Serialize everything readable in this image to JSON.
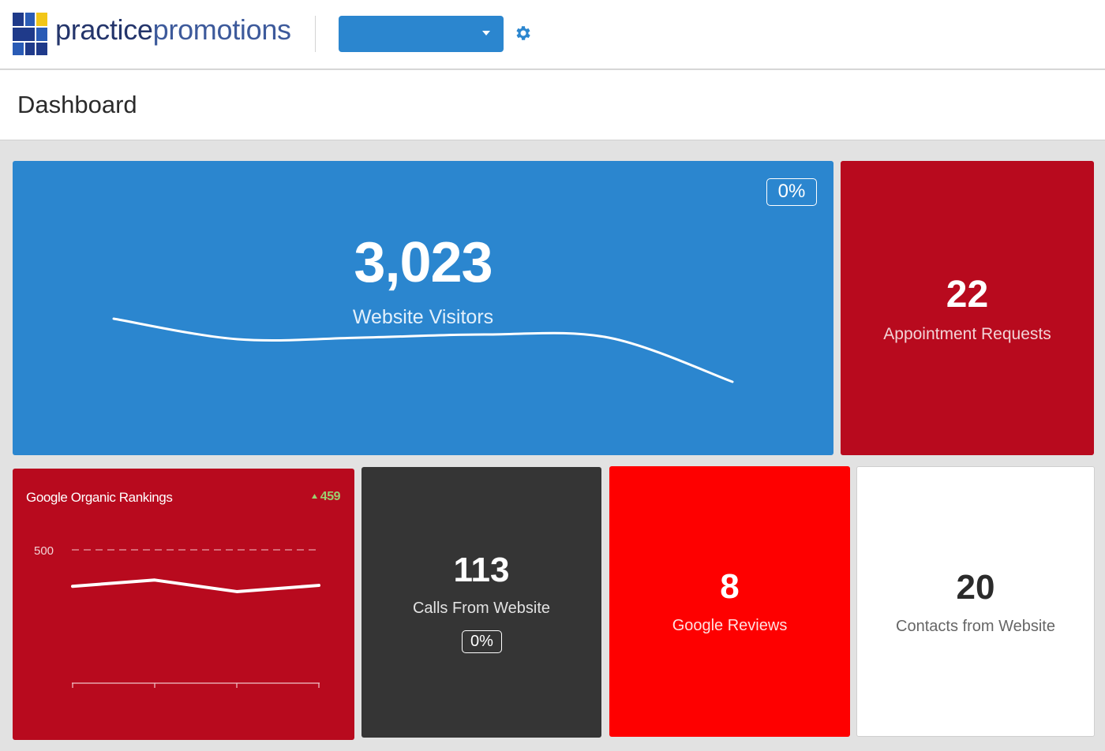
{
  "header": {
    "logo_text_bold": "practice",
    "logo_text_light": "promotions",
    "location_select_value": "",
    "settings_icon": "gear-icon",
    "logo_colors": [
      "#1f3a8a",
      "#2a5bb5",
      "#f2c618"
    ]
  },
  "page": {
    "title": "Dashboard"
  },
  "tiles": {
    "visitors": {
      "value": "3,023",
      "label": "Website Visitors",
      "change": "0%",
      "color": "#2b86cf"
    },
    "appointments": {
      "value": "22",
      "label": "Appointment Requests",
      "color": "#b80a1e"
    },
    "rankings": {
      "title": "Google Organic Rankings",
      "change": "459",
      "change_icon": "triangle-up-icon",
      "reference_label": "500",
      "color": "#b80a1e"
    },
    "calls": {
      "value": "113",
      "label": "Calls From Website",
      "change": "0%",
      "color": "#353535"
    },
    "reviews": {
      "value": "8",
      "label": "Google Reviews",
      "color": "#fe0000"
    },
    "contacts": {
      "value": "20",
      "label": "Contacts from Website",
      "color": "#ffffff"
    }
  },
  "chart_data": [
    {
      "type": "line",
      "series": [
        {
          "values": [
            3300,
            3170,
            3180,
            3200,
            3180,
            2900
          ]
        }
      ],
      "grid": false,
      "ylim": [
        2500,
        3500
      ]
    },
    {
      "type": "line",
      "x": [
        1,
        2,
        3,
        4
      ],
      "series": [
        {
          "values": [
            459,
            466,
            453,
            460
          ]
        }
      ],
      "reference_line": 500,
      "ylim": [
        350,
        500
      ],
      "grid": false
    }
  ]
}
